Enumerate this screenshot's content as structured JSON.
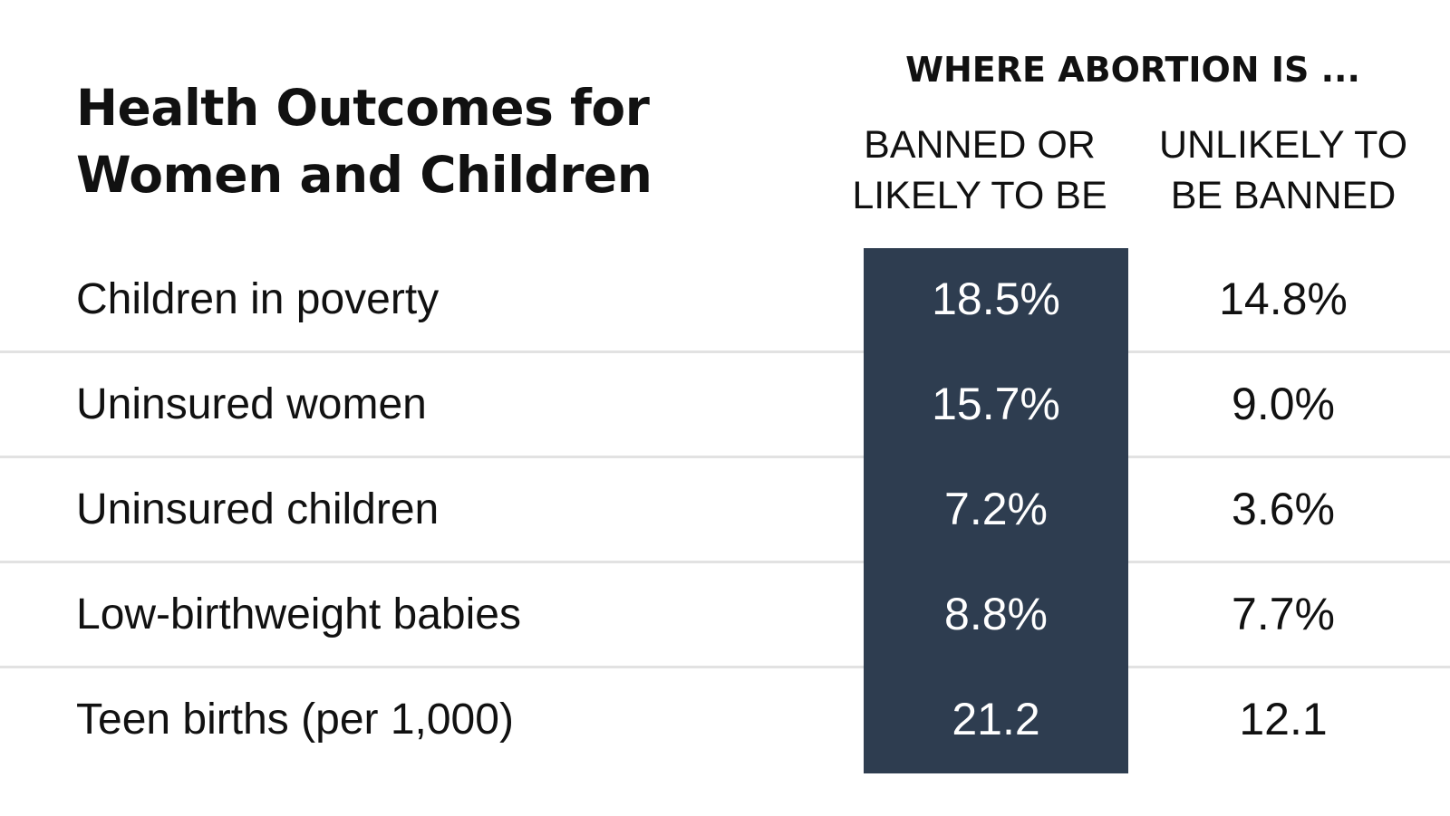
{
  "colors": {
    "highlight_fill": "#2e3d50",
    "divider": "#e2e2e2",
    "text": "#111111"
  },
  "chart_data": {
    "type": "table",
    "title": "Health Outcomes for Women and Children",
    "group_header": "WHERE ABORTION IS ...",
    "columns": [
      "BANNED OR LIKELY TO BE",
      "UNLIKELY TO BE BANNED"
    ],
    "column_lines": [
      [
        "BANNED OR",
        "LIKELY TO BE"
      ],
      [
        "UNLIKELY TO",
        "BE BANNED"
      ]
    ],
    "rows": [
      {
        "label": "Children in poverty",
        "banned": "18.5%",
        "unlikely": "14.8%"
      },
      {
        "label": "Uninsured women",
        "banned": "15.7%",
        "unlikely": "9.0%"
      },
      {
        "label": "Uninsured children",
        "banned": "7.2%",
        "unlikely": "3.6%"
      },
      {
        "label": "Low-birthweight babies",
        "banned": "8.8%",
        "unlikely": "7.7%"
      },
      {
        "label": "Teen births (per 1,000)",
        "banned": "21.2",
        "unlikely": "12.1"
      }
    ]
  }
}
